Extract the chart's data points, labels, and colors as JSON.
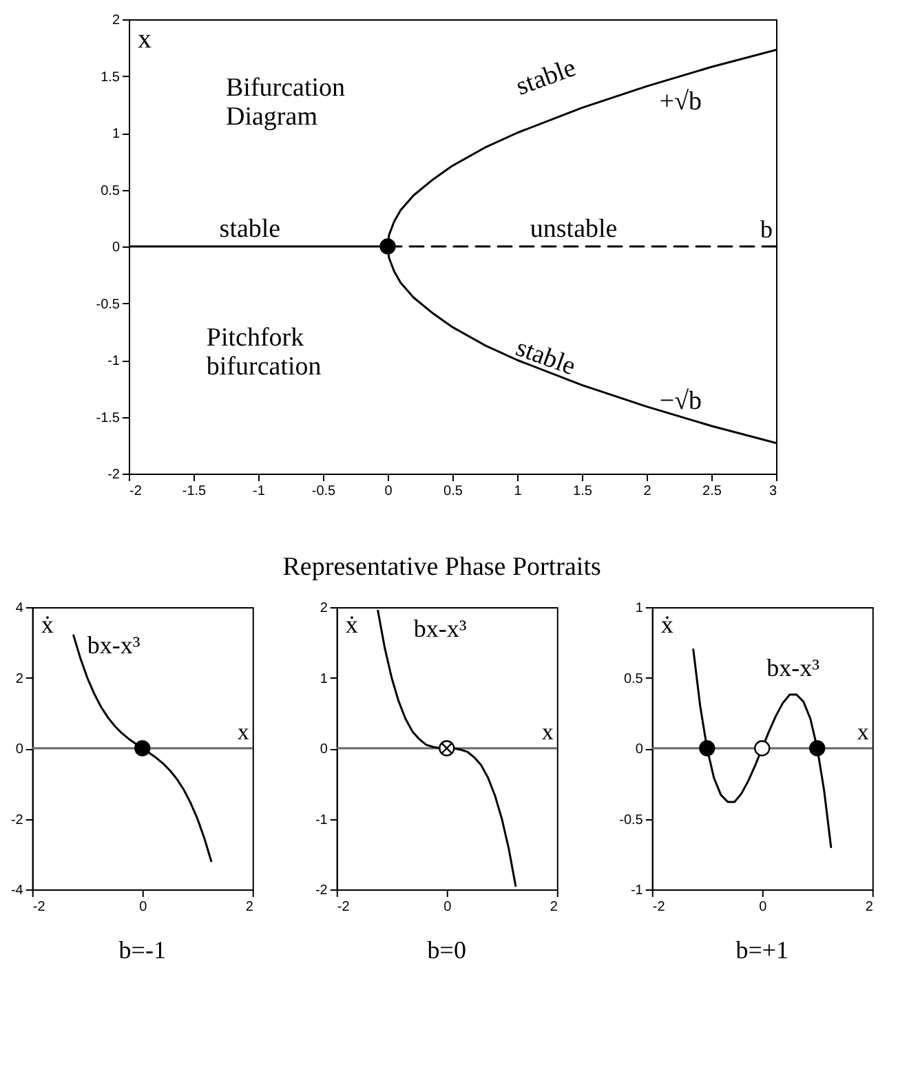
{
  "chart_data": [
    {
      "type": "line",
      "xlabel": "b",
      "ylabel": "x",
      "xlim": [
        -2,
        3
      ],
      "ylim": [
        -2,
        2
      ],
      "xticks": [
        -2,
        -1.5,
        -1,
        -0.5,
        0,
        0.5,
        1,
        1.5,
        2,
        2.5,
        3
      ],
      "yticks": [
        -2,
        -1.5,
        -1,
        -0.5,
        0,
        0.5,
        1,
        1.5,
        2
      ],
      "grid": false,
      "marker": "none",
      "series": [
        {
          "color": "#000000",
          "line_style": "solid",
          "x": [
            -2,
            0
          ],
          "values": [
            0,
            0
          ]
        },
        {
          "color": "#000000",
          "line_style": "dashed",
          "x": [
            0,
            3
          ],
          "values": [
            0,
            0
          ]
        },
        {
          "color": "#000000",
          "line_style": "solid",
          "x": [
            0,
            0.01,
            0.05,
            0.1,
            0.2,
            0.35,
            0.5,
            0.75,
            1,
            1.5,
            2,
            2.5,
            3
          ],
          "values": [
            0,
            0.1,
            0.22,
            0.32,
            0.45,
            0.59,
            0.71,
            0.87,
            1,
            1.22,
            1.41,
            1.58,
            1.73
          ]
        },
        {
          "color": "#000000",
          "line_style": "solid",
          "x": [
            0,
            0.01,
            0.05,
            0.1,
            0.2,
            0.35,
            0.5,
            0.75,
            1,
            1.5,
            2,
            2.5,
            3
          ],
          "values": [
            0,
            -0.1,
            -0.22,
            -0.32,
            -0.45,
            -0.59,
            -0.71,
            -0.87,
            -1,
            -1.22,
            -1.41,
            -1.58,
            -1.73
          ]
        },
        {
          "type": "scatter",
          "marker": "circle",
          "color": "#000000",
          "x": [
            0
          ],
          "values": [
            0
          ]
        }
      ],
      "annotations": [
        "Bifurcation\nDiagram",
        "stable",
        "unstable",
        "stable",
        "+√b",
        "stable",
        "−√b",
        "Pitchfork\nbifurcation"
      ]
    },
    {
      "type": "line",
      "xlabel": "x",
      "ylabel": "ẋ",
      "xlim": [
        -2,
        2
      ],
      "ylim": [
        -4,
        4
      ],
      "xticks": [
        -2,
        0,
        2
      ],
      "yticks": [
        -4,
        -2,
        0,
        2,
        4
      ],
      "grid": false,
      "marker": "none",
      "ref_lines": [
        {
          "axis": "y",
          "value": 0
        }
      ],
      "series": [
        {
          "color": "#000000",
          "line_style": "solid",
          "x": [
            -1.25,
            -1.125,
            -1,
            -0.875,
            -0.75,
            -0.625,
            -0.5,
            -0.375,
            -0.25,
            -0.125,
            0,
            0.125,
            0.25,
            0.375,
            0.5,
            0.625,
            0.75,
            0.875,
            1,
            1.125,
            1.25
          ],
          "values": [
            3.2,
            2.55,
            2,
            1.55,
            1.17,
            0.87,
            0.63,
            0.43,
            0.27,
            0.13,
            0,
            -0.13,
            -0.27,
            -0.43,
            -0.63,
            -0.87,
            -1.17,
            -1.55,
            -2,
            -2.55,
            -3.2
          ]
        },
        {
          "type": "scatter",
          "marker": "circle",
          "color": "#000000",
          "x": [
            0
          ],
          "values": [
            0
          ]
        }
      ],
      "annotations": [
        "bx-x³",
        "b=-1"
      ]
    },
    {
      "type": "line",
      "title": "Representative Phase Portraits",
      "xlabel": "x",
      "ylabel": "ẋ",
      "xlim": [
        -2,
        2
      ],
      "ylim": [
        -2,
        2
      ],
      "xticks": [
        -2,
        0,
        2
      ],
      "yticks": [
        -2,
        -1,
        0,
        1,
        2
      ],
      "grid": false,
      "marker": "none",
      "ref_lines": [
        {
          "axis": "y",
          "value": 0
        }
      ],
      "series": [
        {
          "color": "#000000",
          "line_style": "solid",
          "x": [
            -1.25,
            -1.125,
            -1,
            -0.875,
            -0.75,
            -0.625,
            -0.5,
            -0.375,
            -0.25,
            -0.125,
            0,
            0.125,
            0.25,
            0.375,
            0.5,
            0.625,
            0.75,
            0.875,
            1,
            1.125,
            1.25
          ],
          "values": [
            1.95,
            1.42,
            1,
            0.67,
            0.42,
            0.24,
            0.13,
            0.05,
            0.02,
            0,
            0,
            0,
            -0.02,
            -0.05,
            -0.13,
            -0.24,
            -0.42,
            -0.67,
            -1,
            -1.42,
            -1.95
          ]
        },
        {
          "type": "scatter",
          "marker": "cross",
          "color": "#ffffff",
          "x": [
            0
          ],
          "values": [
            0
          ]
        }
      ],
      "annotations": [
        "bx-x³",
        "b=0"
      ]
    },
    {
      "type": "line",
      "xlabel": "x",
      "ylabel": "ẋ",
      "xlim": [
        -2,
        2
      ],
      "ylim": [
        -1,
        1
      ],
      "xticks": [
        -2,
        0,
        2
      ],
      "yticks": [
        -1,
        -0.5,
        0,
        0.5,
        1
      ],
      "grid": false,
      "marker": "none",
      "ref_lines": [
        {
          "axis": "y",
          "value": 0
        }
      ],
      "series": [
        {
          "color": "#000000",
          "line_style": "solid",
          "x": [
            -1.25,
            -1.125,
            -1,
            -0.875,
            -0.75,
            -0.625,
            -0.5,
            -0.375,
            -0.25,
            -0.125,
            0,
            0.125,
            0.25,
            0.375,
            0.5,
            0.625,
            0.75,
            0.875,
            1,
            1.125,
            1.25
          ],
          "values": [
            0.7,
            0.3,
            0,
            -0.21,
            -0.33,
            -0.38,
            -0.38,
            -0.32,
            -0.23,
            -0.12,
            0,
            0.12,
            0.23,
            0.32,
            0.38,
            0.38,
            0.33,
            0.21,
            0,
            -0.3,
            -0.7
          ]
        },
        {
          "type": "scatter",
          "marker": "circle",
          "color": "#000000",
          "x": [
            -1,
            1
          ],
          "values": [
            0,
            0
          ]
        },
        {
          "type": "scatter",
          "marker": "circle",
          "color": "#ffffff",
          "x": [
            0
          ],
          "values": [
            0
          ]
        }
      ],
      "annotations": [
        "bx-x³",
        "b=+1"
      ]
    }
  ]
}
